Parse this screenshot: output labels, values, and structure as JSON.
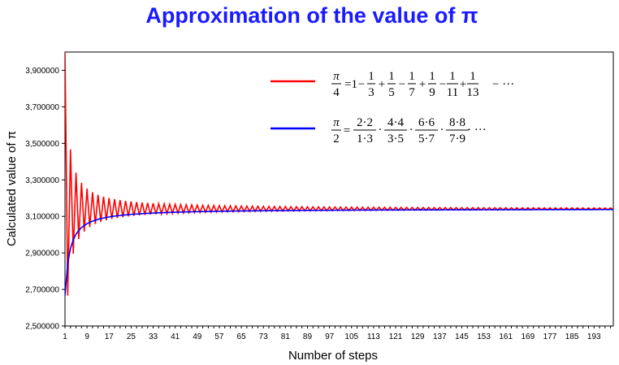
{
  "chart_data": {
    "type": "line",
    "title": "Approximation of the value of π",
    "xlabel": "Number of steps",
    "ylabel": "Calculated value of π",
    "ylim": [
      2.5,
      4.0
    ],
    "xlim": [
      1,
      200
    ],
    "y_ticks": [
      "2,500000",
      "2,700000",
      "2,900000",
      "3,100000",
      "3,300000",
      "3,500000",
      "3,700000",
      "3,900000"
    ],
    "y_tick_values": [
      2.5,
      2.7,
      2.9,
      3.1,
      3.3,
      3.5,
      3.7,
      3.9
    ],
    "x_ticks": [
      "1",
      "9",
      "17",
      "25",
      "33",
      "41",
      "49",
      "57",
      "65",
      "73",
      "81",
      "89",
      "97",
      "105",
      "113",
      "121",
      "129",
      "137",
      "145",
      "153",
      "161",
      "169",
      "177",
      "185",
      "193"
    ],
    "x_tick_values": [
      1,
      9,
      17,
      25,
      33,
      41,
      49,
      57,
      65,
      73,
      81,
      89,
      97,
      105,
      113,
      121,
      129,
      137,
      145,
      153,
      161,
      169,
      177,
      185,
      193
    ],
    "grid": false,
    "legend_position": "top-right",
    "series": [
      {
        "key": "leibniz",
        "color": "#ff0000",
        "formula": "π/4 = 1 − 1/3 + 1/5 − 1/7 + 1/9 − 1/11 + 1/13 − ···"
      },
      {
        "key": "wallis",
        "color": "#0000ff",
        "formula": "π/2 = (2·2)/(1·3) · (4·4)/(3·5) · (6·6)/(5·7) · (8·8)/(7·9) · ···"
      }
    ],
    "legend": {
      "leibniz": {
        "lhs_num": "π",
        "lhs_den": "4",
        "eq_one": "=1",
        "terms": [
          {
            "op": "−",
            "num": "1",
            "den": "3"
          },
          {
            "op": "+",
            "num": "1",
            "den": "5"
          },
          {
            "op": "−",
            "num": "1",
            "den": "7"
          },
          {
            "op": "+",
            "num": "1",
            "den": "9"
          },
          {
            "op": "−",
            "num": "1",
            "den": "11"
          },
          {
            "op": "+",
            "num": "1",
            "den": "13"
          }
        ],
        "tail": "− ···"
      },
      "wallis": {
        "lhs_num": "π",
        "lhs_den": "2",
        "eq": "=",
        "factors": [
          {
            "num": "2·2",
            "den": "1·3"
          },
          {
            "num": "4·4",
            "den": "3·5"
          },
          {
            "num": "6·6",
            "den": "5·7"
          },
          {
            "num": "8·8",
            "den": "7·9"
          }
        ],
        "tail": "· ···"
      }
    }
  }
}
